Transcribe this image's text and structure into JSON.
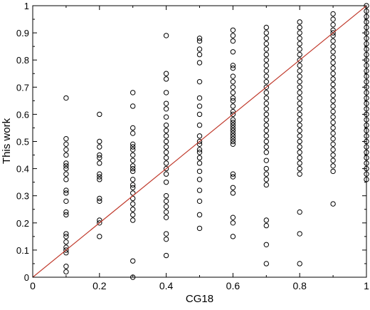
{
  "chart_data": {
    "type": "scatter",
    "title": "",
    "xlabel": "CG18",
    "ylabel": "This work",
    "xlim": [
      0,
      1
    ],
    "ylim": [
      0,
      1
    ],
    "x_ticks": [
      "0",
      "0.2",
      "0.4",
      "0.6",
      "0.8",
      "1"
    ],
    "y_ticks": [
      "0",
      "0.1",
      "0.2",
      "0.3",
      "0.4",
      "0.5",
      "0.6",
      "0.7",
      "0.8",
      "0.9",
      "1"
    ],
    "grid": false,
    "legend": "none",
    "reference_line": {
      "from": [
        0,
        0
      ],
      "to": [
        1,
        1
      ],
      "color": "#c0392b"
    },
    "marker": {
      "shape": "open-circle",
      "color": "#000000"
    },
    "series": [
      {
        "points": [
          [
            0.1,
            0.66
          ],
          [
            0.1,
            0.51
          ],
          [
            0.1,
            0.49
          ],
          [
            0.1,
            0.47
          ],
          [
            0.1,
            0.45
          ],
          [
            0.1,
            0.42
          ],
          [
            0.1,
            0.41
          ],
          [
            0.1,
            0.4
          ],
          [
            0.1,
            0.38
          ],
          [
            0.1,
            0.36
          ],
          [
            0.1,
            0.32
          ],
          [
            0.1,
            0.31
          ],
          [
            0.1,
            0.28
          ],
          [
            0.1,
            0.24
          ],
          [
            0.1,
            0.23
          ],
          [
            0.1,
            0.16
          ],
          [
            0.1,
            0.15
          ],
          [
            0.1,
            0.13
          ],
          [
            0.1,
            0.11
          ],
          [
            0.1,
            0.1
          ],
          [
            0.1,
            0.09
          ],
          [
            0.1,
            0.04
          ],
          [
            0.1,
            0.02
          ],
          [
            0.2,
            0.6
          ],
          [
            0.2,
            0.5
          ],
          [
            0.2,
            0.48
          ],
          [
            0.2,
            0.45
          ],
          [
            0.2,
            0.44
          ],
          [
            0.2,
            0.42
          ],
          [
            0.2,
            0.38
          ],
          [
            0.2,
            0.37
          ],
          [
            0.2,
            0.36
          ],
          [
            0.2,
            0.29
          ],
          [
            0.2,
            0.28
          ],
          [
            0.2,
            0.21
          ],
          [
            0.2,
            0.2
          ],
          [
            0.2,
            0.15
          ],
          [
            0.3,
            0.68
          ],
          [
            0.3,
            0.63
          ],
          [
            0.3,
            0.55
          ],
          [
            0.3,
            0.53
          ],
          [
            0.3,
            0.49
          ],
          [
            0.3,
            0.48
          ],
          [
            0.3,
            0.47
          ],
          [
            0.3,
            0.45
          ],
          [
            0.3,
            0.43
          ],
          [
            0.3,
            0.41
          ],
          [
            0.3,
            0.4
          ],
          [
            0.3,
            0.39
          ],
          [
            0.3,
            0.36
          ],
          [
            0.3,
            0.34
          ],
          [
            0.3,
            0.33
          ],
          [
            0.3,
            0.31
          ],
          [
            0.3,
            0.29
          ],
          [
            0.3,
            0.27
          ],
          [
            0.3,
            0.25
          ],
          [
            0.3,
            0.23
          ],
          [
            0.3,
            0.21
          ],
          [
            0.3,
            0.06
          ],
          [
            0.3,
            0.0
          ],
          [
            0.4,
            0.89
          ],
          [
            0.4,
            0.75
          ],
          [
            0.4,
            0.73
          ],
          [
            0.4,
            0.68
          ],
          [
            0.4,
            0.64
          ],
          [
            0.4,
            0.62
          ],
          [
            0.4,
            0.59
          ],
          [
            0.4,
            0.56
          ],
          [
            0.4,
            0.54
          ],
          [
            0.4,
            0.52
          ],
          [
            0.4,
            0.5
          ],
          [
            0.4,
            0.48
          ],
          [
            0.4,
            0.46
          ],
          [
            0.4,
            0.44
          ],
          [
            0.4,
            0.42
          ],
          [
            0.4,
            0.4
          ],
          [
            0.4,
            0.38
          ],
          [
            0.4,
            0.35
          ],
          [
            0.4,
            0.3
          ],
          [
            0.4,
            0.28
          ],
          [
            0.4,
            0.26
          ],
          [
            0.4,
            0.24
          ],
          [
            0.4,
            0.22
          ],
          [
            0.4,
            0.16
          ],
          [
            0.4,
            0.14
          ],
          [
            0.4,
            0.08
          ],
          [
            0.5,
            0.88
          ],
          [
            0.5,
            0.87
          ],
          [
            0.5,
            0.84
          ],
          [
            0.5,
            0.82
          ],
          [
            0.5,
            0.79
          ],
          [
            0.5,
            0.72
          ],
          [
            0.5,
            0.66
          ],
          [
            0.5,
            0.63
          ],
          [
            0.5,
            0.6
          ],
          [
            0.5,
            0.56
          ],
          [
            0.5,
            0.52
          ],
          [
            0.5,
            0.5
          ],
          [
            0.5,
            0.49
          ],
          [
            0.5,
            0.47
          ],
          [
            0.5,
            0.46
          ],
          [
            0.5,
            0.44
          ],
          [
            0.5,
            0.42
          ],
          [
            0.5,
            0.39
          ],
          [
            0.5,
            0.36
          ],
          [
            0.5,
            0.32
          ],
          [
            0.5,
            0.28
          ],
          [
            0.5,
            0.23
          ],
          [
            0.5,
            0.18
          ],
          [
            0.6,
            0.91
          ],
          [
            0.6,
            0.89
          ],
          [
            0.6,
            0.87
          ],
          [
            0.6,
            0.83
          ],
          [
            0.6,
            0.78
          ],
          [
            0.6,
            0.77
          ],
          [
            0.6,
            0.74
          ],
          [
            0.6,
            0.72
          ],
          [
            0.6,
            0.7
          ],
          [
            0.6,
            0.68
          ],
          [
            0.6,
            0.66
          ],
          [
            0.6,
            0.65
          ],
          [
            0.6,
            0.63
          ],
          [
            0.6,
            0.61
          ],
          [
            0.6,
            0.6
          ],
          [
            0.6,
            0.58
          ],
          [
            0.6,
            0.57
          ],
          [
            0.6,
            0.56
          ],
          [
            0.6,
            0.55
          ],
          [
            0.6,
            0.54
          ],
          [
            0.6,
            0.53
          ],
          [
            0.6,
            0.52
          ],
          [
            0.6,
            0.51
          ],
          [
            0.6,
            0.5
          ],
          [
            0.6,
            0.49
          ],
          [
            0.6,
            0.38
          ],
          [
            0.6,
            0.37
          ],
          [
            0.6,
            0.33
          ],
          [
            0.6,
            0.31
          ],
          [
            0.6,
            0.22
          ],
          [
            0.6,
            0.2
          ],
          [
            0.6,
            0.15
          ],
          [
            0.7,
            0.92
          ],
          [
            0.7,
            0.9
          ],
          [
            0.7,
            0.88
          ],
          [
            0.7,
            0.86
          ],
          [
            0.7,
            0.84
          ],
          [
            0.7,
            0.82
          ],
          [
            0.7,
            0.8
          ],
          [
            0.7,
            0.78
          ],
          [
            0.7,
            0.76
          ],
          [
            0.7,
            0.74
          ],
          [
            0.7,
            0.72
          ],
          [
            0.7,
            0.7
          ],
          [
            0.7,
            0.68
          ],
          [
            0.7,
            0.66
          ],
          [
            0.7,
            0.64
          ],
          [
            0.7,
            0.62
          ],
          [
            0.7,
            0.6
          ],
          [
            0.7,
            0.58
          ],
          [
            0.7,
            0.56
          ],
          [
            0.7,
            0.54
          ],
          [
            0.7,
            0.52
          ],
          [
            0.7,
            0.5
          ],
          [
            0.7,
            0.48
          ],
          [
            0.7,
            0.46
          ],
          [
            0.7,
            0.43
          ],
          [
            0.7,
            0.4
          ],
          [
            0.7,
            0.38
          ],
          [
            0.7,
            0.36
          ],
          [
            0.7,
            0.34
          ],
          [
            0.7,
            0.21
          ],
          [
            0.7,
            0.19
          ],
          [
            0.7,
            0.12
          ],
          [
            0.7,
            0.05
          ],
          [
            0.8,
            0.94
          ],
          [
            0.8,
            0.92
          ],
          [
            0.8,
            0.9
          ],
          [
            0.8,
            0.88
          ],
          [
            0.8,
            0.86
          ],
          [
            0.8,
            0.84
          ],
          [
            0.8,
            0.82
          ],
          [
            0.8,
            0.8
          ],
          [
            0.8,
            0.78
          ],
          [
            0.8,
            0.76
          ],
          [
            0.8,
            0.74
          ],
          [
            0.8,
            0.72
          ],
          [
            0.8,
            0.7
          ],
          [
            0.8,
            0.68
          ],
          [
            0.8,
            0.66
          ],
          [
            0.8,
            0.64
          ],
          [
            0.8,
            0.62
          ],
          [
            0.8,
            0.6
          ],
          [
            0.8,
            0.58
          ],
          [
            0.8,
            0.56
          ],
          [
            0.8,
            0.54
          ],
          [
            0.8,
            0.52
          ],
          [
            0.8,
            0.5
          ],
          [
            0.8,
            0.48
          ],
          [
            0.8,
            0.46
          ],
          [
            0.8,
            0.44
          ],
          [
            0.8,
            0.42
          ],
          [
            0.8,
            0.4
          ],
          [
            0.8,
            0.38
          ],
          [
            0.8,
            0.24
          ],
          [
            0.8,
            0.16
          ],
          [
            0.8,
            0.05
          ],
          [
            0.9,
            0.97
          ],
          [
            0.9,
            0.95
          ],
          [
            0.9,
            0.93
          ],
          [
            0.9,
            0.91
          ],
          [
            0.9,
            0.9
          ],
          [
            0.9,
            0.89
          ],
          [
            0.9,
            0.87
          ],
          [
            0.9,
            0.85
          ],
          [
            0.9,
            0.83
          ],
          [
            0.9,
            0.81
          ],
          [
            0.9,
            0.79
          ],
          [
            0.9,
            0.77
          ],
          [
            0.9,
            0.75
          ],
          [
            0.9,
            0.73
          ],
          [
            0.9,
            0.71
          ],
          [
            0.9,
            0.69
          ],
          [
            0.9,
            0.67
          ],
          [
            0.9,
            0.65
          ],
          [
            0.9,
            0.63
          ],
          [
            0.9,
            0.61
          ],
          [
            0.9,
            0.59
          ],
          [
            0.9,
            0.57
          ],
          [
            0.9,
            0.55
          ],
          [
            0.9,
            0.53
          ],
          [
            0.9,
            0.51
          ],
          [
            0.9,
            0.49
          ],
          [
            0.9,
            0.47
          ],
          [
            0.9,
            0.45
          ],
          [
            0.9,
            0.43
          ],
          [
            0.9,
            0.41
          ],
          [
            0.9,
            0.39
          ],
          [
            0.9,
            0.27
          ],
          [
            1.0,
            1.0
          ],
          [
            1.0,
            0.98
          ],
          [
            1.0,
            0.96
          ],
          [
            1.0,
            0.94
          ],
          [
            1.0,
            0.92
          ],
          [
            1.0,
            0.9
          ],
          [
            1.0,
            0.88
          ],
          [
            1.0,
            0.86
          ],
          [
            1.0,
            0.84
          ],
          [
            1.0,
            0.82
          ],
          [
            1.0,
            0.8
          ],
          [
            1.0,
            0.78
          ],
          [
            1.0,
            0.76
          ],
          [
            1.0,
            0.74
          ],
          [
            1.0,
            0.72
          ],
          [
            1.0,
            0.7
          ],
          [
            1.0,
            0.68
          ],
          [
            1.0,
            0.66
          ],
          [
            1.0,
            0.64
          ],
          [
            1.0,
            0.62
          ],
          [
            1.0,
            0.6
          ],
          [
            1.0,
            0.58
          ],
          [
            1.0,
            0.56
          ],
          [
            1.0,
            0.54
          ],
          [
            1.0,
            0.52
          ],
          [
            1.0,
            0.5
          ],
          [
            1.0,
            0.48
          ],
          [
            1.0,
            0.46
          ],
          [
            1.0,
            0.44
          ],
          [
            1.0,
            0.42
          ],
          [
            1.0,
            0.4
          ],
          [
            1.0,
            0.38
          ],
          [
            1.0,
            0.36
          ]
        ]
      }
    ]
  }
}
